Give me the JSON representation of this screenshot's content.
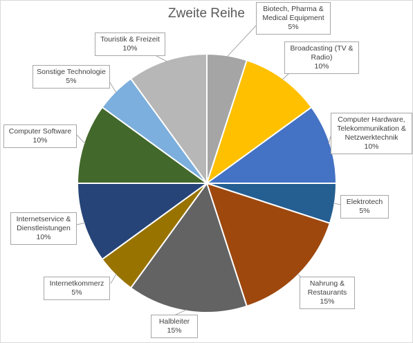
{
  "chart_data": {
    "type": "pie",
    "title": "Zweite Reihe",
    "start_angle_deg": 0,
    "direction": "clockwise",
    "slices": [
      {
        "label": "Biotech, Pharma & Medical Equipment",
        "value": 5,
        "value_label": "5%",
        "color": "#a5a5a5"
      },
      {
        "label": "Broadcasting (TV & Radio)",
        "value": 10,
        "value_label": "10%",
        "color": "#ffc000"
      },
      {
        "label": "Computer Hardware, Telekommunikation & Netzwerktechnik",
        "value": 10,
        "value_label": "10%",
        "color": "#4472c4"
      },
      {
        "label": "Elektrotech",
        "value": 5,
        "value_label": "5%",
        "color": "#255e91"
      },
      {
        "label": "Nahrung & Restaurants",
        "value": 15,
        "value_label": "15%",
        "color": "#9e480e"
      },
      {
        "label": "Halbleiter",
        "value": 15,
        "value_label": "15%",
        "color": "#636363"
      },
      {
        "label": "Internetkommerz",
        "value": 5,
        "value_label": "5%",
        "color": "#997300"
      },
      {
        "label": "Internetservice & Dienstleistungen",
        "value": 10,
        "value_label": "10%",
        "color": "#264478"
      },
      {
        "label": "Computer Software",
        "value": 10,
        "value_label": "10%",
        "color": "#43682b"
      },
      {
        "label": "Sonstige Technologie",
        "value": 5,
        "value_label": "5%",
        "color": "#7cafdd"
      },
      {
        "label": "Touristik & Freizeit",
        "value": 10,
        "value_label": "10%",
        "color": "#b7b7b7"
      }
    ]
  }
}
